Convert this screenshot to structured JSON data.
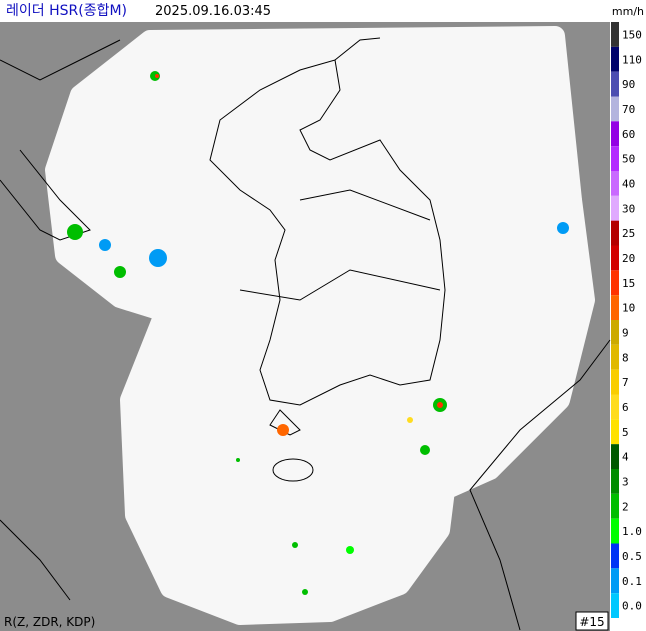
{
  "header": {
    "title": "레이더 HSR(종합M)",
    "timestamp": "2025.09.16.03:45",
    "unit": "mm/h"
  },
  "legend": [
    {
      "label": "150",
      "color": "#333333"
    },
    {
      "label": "110",
      "color": "#00036b"
    },
    {
      "label": "90",
      "color": "#4c4eb1"
    },
    {
      "label": "70",
      "color": "#b3b4de"
    },
    {
      "label": "60",
      "color": "#9300e4"
    },
    {
      "label": "50",
      "color": "#b329ff"
    },
    {
      "label": "40",
      "color": "#c969ff"
    },
    {
      "label": "30",
      "color": "#e0a9ff"
    },
    {
      "label": "25",
      "color": "#b40000"
    },
    {
      "label": "20",
      "color": "#d20000"
    },
    {
      "label": "15",
      "color": "#ff3300"
    },
    {
      "label": "10",
      "color": "#ff6600"
    },
    {
      "label": "9",
      "color": "#ccaa00"
    },
    {
      "label": "8",
      "color": "#e0b900"
    },
    {
      "label": "7",
      "color": "#f9cd00"
    },
    {
      "label": "6",
      "color": "#ffdc1f"
    },
    {
      "label": "5",
      "color": "#ffe100"
    },
    {
      "label": "4",
      "color": "#005a00"
    },
    {
      "label": "3",
      "color": "#008c00"
    },
    {
      "label": "2",
      "color": "#00be00"
    },
    {
      "label": "1.0",
      "color": "#00ff00"
    },
    {
      "label": "0.5",
      "color": "#0033f5"
    },
    {
      "label": "0.1",
      "color": "#009bf5"
    },
    {
      "label": "0.0",
      "color": "#00c8ff"
    }
  ],
  "footer": {
    "algorithm": "R(Z, ZDR, KDP)",
    "radar_count": "#15"
  }
}
